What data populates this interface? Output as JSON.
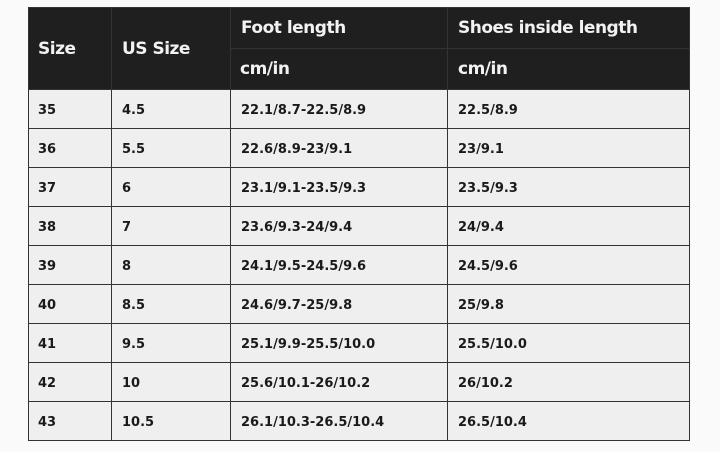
{
  "header": {
    "size": "Size",
    "us_size": "US Size",
    "foot_length": "Foot length",
    "shoes_inside_length": "Shoes inside length",
    "foot_unit": "cm/in",
    "shoes_unit": "cm/in"
  },
  "rows": [
    [
      "35",
      "4.5",
      "22.1/8.7-22.5/8.9",
      "22.5/8.9"
    ],
    [
      "36",
      "5.5",
      "22.6/8.9-23/9.1",
      "23/9.1"
    ],
    [
      "37",
      "6",
      "23.1/9.1-23.5/9.3",
      "23.5/9.3"
    ],
    [
      "38",
      "7",
      "23.6/9.3-24/9.4",
      "24/9.4"
    ],
    [
      "39",
      "8",
      "24.1/9.5-24.5/9.6",
      "24.5/9.6"
    ],
    [
      "40",
      "8.5",
      "24.6/9.7-25/9.8",
      "25/9.8"
    ],
    [
      "41",
      "9.5",
      "25.1/9.9-25.5/10.0",
      "25.5/10.0"
    ],
    [
      "42",
      "10",
      "25.6/10.1-26/10.2",
      "26/10.2"
    ],
    [
      "43",
      "10.5",
      "26.1/10.3-26.5/10.4",
      "26.5/10.4"
    ]
  ],
  "colors": {
    "header_bg": "#1f1f1f",
    "header_text": "#f2f2f2",
    "cell_bg": "#efefef"
  }
}
